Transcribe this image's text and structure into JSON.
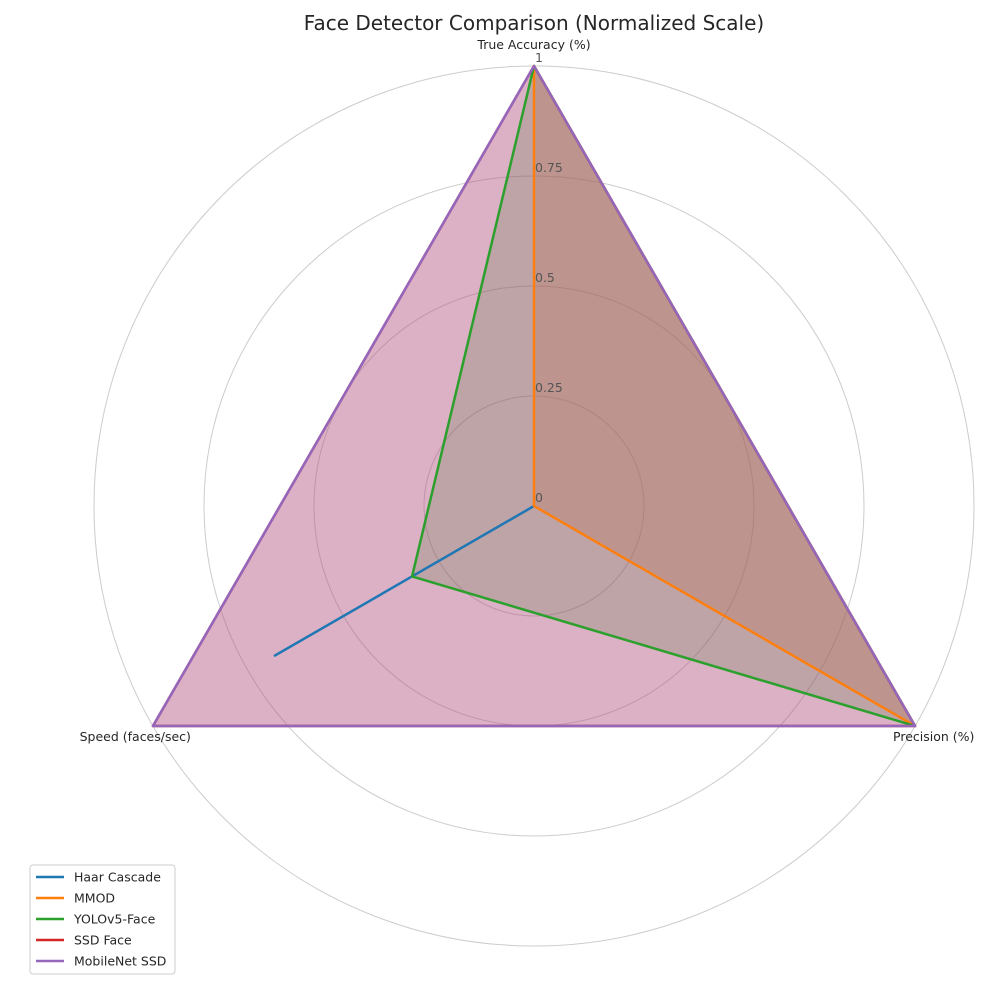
{
  "chart_data": {
    "type": "radar",
    "title": "Face Detector Comparison (Normalized Scale)",
    "axes": [
      "True Accuracy (%)",
      "Precision (%)",
      "Speed (faces/sec)"
    ],
    "rlim": [
      0,
      1
    ],
    "r_ticks": [
      0,
      0.25,
      0.5,
      0.75,
      1
    ],
    "r_tick_labels": [
      "0",
      "0.25",
      "0.5",
      "0.75",
      "1"
    ],
    "grid": true,
    "legend_position": "lower-left",
    "series": [
      {
        "name": "Haar Cascade",
        "color": "#1f77b4",
        "values": [
          0,
          0,
          0.68
        ]
      },
      {
        "name": "MMOD",
        "color": "#ff7f0e",
        "values": [
          1,
          1,
          0
        ]
      },
      {
        "name": "YOLOv5-Face",
        "color": "#2ca02c",
        "values": [
          1,
          1,
          0.32
        ]
      },
      {
        "name": "SSD Face",
        "color": "#d62728",
        "values": [
          1,
          1,
          1
        ]
      },
      {
        "name": "MobileNet SSD",
        "color": "#9467bd",
        "values": [
          1,
          1,
          1
        ]
      }
    ]
  }
}
